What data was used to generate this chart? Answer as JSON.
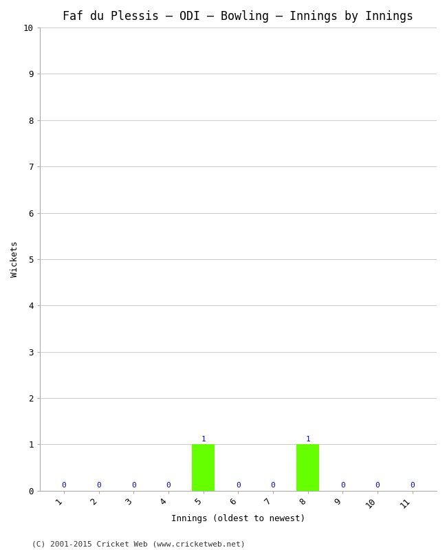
{
  "title": "Faf du Plessis – ODI – Bowling – Innings by Innings",
  "xlabel": "Innings (oldest to newest)",
  "ylabel": "Wickets",
  "innings": [
    1,
    2,
    3,
    4,
    5,
    6,
    7,
    8,
    9,
    10,
    11
  ],
  "wickets": [
    0,
    0,
    0,
    0,
    1,
    0,
    0,
    1,
    0,
    0,
    0
  ],
  "bar_color": "#66ff00",
  "label_color": "#0000cc",
  "label_fontsize": 8,
  "ylim": [
    0,
    10
  ],
  "yticks": [
    0,
    1,
    2,
    3,
    4,
    5,
    6,
    7,
    8,
    9,
    10
  ],
  "background_color": "#ffffff",
  "grid_color": "#cccccc",
  "title_fontsize": 12,
  "axis_label_fontsize": 9,
  "tick_fontsize": 9,
  "footer": "(C) 2001-2015 Cricket Web (www.cricketweb.net)",
  "footer_fontsize": 8,
  "bar_width": 0.65
}
